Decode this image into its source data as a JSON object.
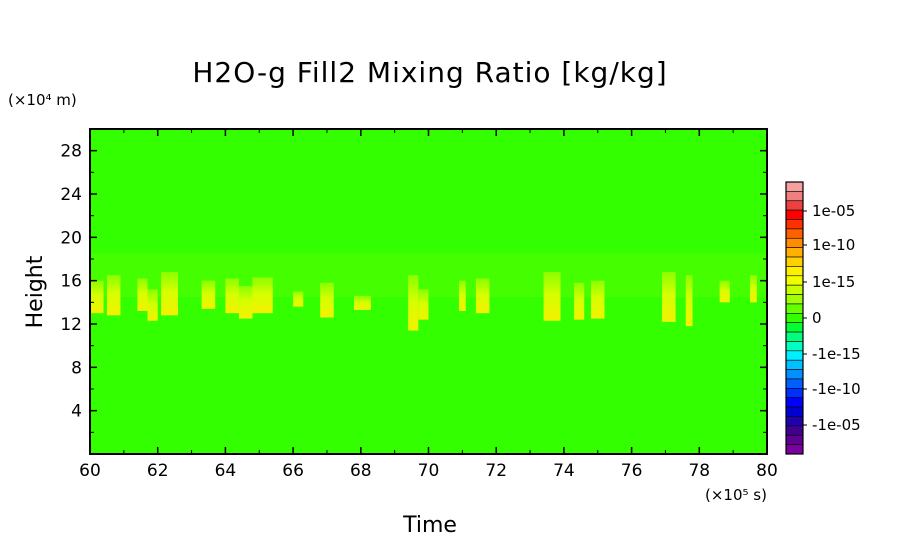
{
  "chart_data": {
    "type": "heatmap",
    "title": "H2O-g Fill2 Mixing Ratio [kg/kg]",
    "xlabel": "Time",
    "ylabel": "Height",
    "x_unit": "(×10⁵ s)",
    "y_unit": "(×10⁴ m)",
    "xlim": [
      60,
      80
    ],
    "ylim": [
      0,
      30
    ],
    "x_ticks": [
      60,
      62,
      64,
      66,
      68,
      70,
      72,
      74,
      76,
      78,
      80
    ],
    "y_ticks": [
      4,
      8,
      12,
      16,
      20,
      24,
      28
    ],
    "x_tick_labels": [
      "60",
      "62",
      "64",
      "66",
      "68",
      "70",
      "72",
      "74",
      "76",
      "78",
      "80"
    ],
    "y_tick_labels": [
      "4",
      "8",
      "12",
      "16",
      "20",
      "24",
      "28"
    ],
    "background_value": "0",
    "background_color": "#33ff00",
    "colorbar": {
      "labels": [
        "1e-05",
        "1e-10",
        "1e-15",
        "0",
        "-1e-15",
        "-1e-10",
        "-1e-05"
      ],
      "colors": [
        "#f4a0a0",
        "#f08080",
        "#ee4040",
        "#ff0000",
        "#ff3000",
        "#ff6000",
        "#ff8c00",
        "#ffb000",
        "#ffd000",
        "#fff000",
        "#f0ff00",
        "#c8ff00",
        "#a0ff00",
        "#66ff00",
        "#33ff00",
        "#00ff33",
        "#00ff80",
        "#00ffc0",
        "#00f0ff",
        "#00c0ff",
        "#0090ff",
        "#0060ff",
        "#0030ff",
        "#0000ff",
        "#0000d0",
        "#2000b0",
        "#400090",
        "#600090",
        "#7a00a0"
      ]
    },
    "features": [
      {
        "x_start": 60.0,
        "x_end": 60.4,
        "y_low": 13.0,
        "y_high": 16.0,
        "value": "1e-15"
      },
      {
        "x_start": 60.5,
        "x_end": 60.9,
        "y_low": 12.8,
        "y_high": 16.5,
        "value": "1e-15"
      },
      {
        "x_start": 61.4,
        "x_end": 61.7,
        "y_low": 13.2,
        "y_high": 16.2,
        "value": "1e-15"
      },
      {
        "x_start": 61.7,
        "x_end": 62.0,
        "y_low": 12.3,
        "y_high": 15.2,
        "value": "1e-15"
      },
      {
        "x_start": 62.1,
        "x_end": 62.6,
        "y_low": 12.8,
        "y_high": 16.8,
        "value": "1e-15"
      },
      {
        "x_start": 63.3,
        "x_end": 63.7,
        "y_low": 13.4,
        "y_high": 16.0,
        "value": "1e-15"
      },
      {
        "x_start": 64.0,
        "x_end": 64.4,
        "y_low": 13.0,
        "y_high": 16.2,
        "value": "1e-15"
      },
      {
        "x_start": 64.4,
        "x_end": 64.8,
        "y_low": 12.5,
        "y_high": 15.5,
        "value": "1e-15"
      },
      {
        "x_start": 64.8,
        "x_end": 65.4,
        "y_low": 13.0,
        "y_high": 16.3,
        "value": "1e-15"
      },
      {
        "x_start": 66.0,
        "x_end": 66.3,
        "y_low": 13.6,
        "y_high": 15.0,
        "value": "1e-15"
      },
      {
        "x_start": 66.8,
        "x_end": 67.2,
        "y_low": 12.6,
        "y_high": 15.8,
        "value": "1e-15"
      },
      {
        "x_start": 67.8,
        "x_end": 68.3,
        "y_low": 13.3,
        "y_high": 14.6,
        "value": "1e-15"
      },
      {
        "x_start": 69.4,
        "x_end": 69.7,
        "y_low": 11.4,
        "y_high": 16.5,
        "value": "1e-15"
      },
      {
        "x_start": 69.7,
        "x_end": 70.0,
        "y_low": 12.4,
        "y_high": 15.2,
        "value": "1e-15"
      },
      {
        "x_start": 70.9,
        "x_end": 71.1,
        "y_low": 13.2,
        "y_high": 16.0,
        "value": "1e-15"
      },
      {
        "x_start": 71.4,
        "x_end": 71.8,
        "y_low": 13.0,
        "y_high": 16.2,
        "value": "1e-15"
      },
      {
        "x_start": 73.4,
        "x_end": 73.9,
        "y_low": 12.3,
        "y_high": 16.8,
        "value": "1e-15"
      },
      {
        "x_start": 74.3,
        "x_end": 74.6,
        "y_low": 12.4,
        "y_high": 15.8,
        "value": "1e-15"
      },
      {
        "x_start": 74.8,
        "x_end": 75.2,
        "y_low": 12.5,
        "y_high": 16.0,
        "value": "1e-15"
      },
      {
        "x_start": 76.9,
        "x_end": 77.3,
        "y_low": 12.2,
        "y_high": 16.8,
        "value": "1e-15"
      },
      {
        "x_start": 77.6,
        "x_end": 77.8,
        "y_low": 11.8,
        "y_high": 16.5,
        "value": "1e-15"
      },
      {
        "x_start": 78.6,
        "x_end": 78.9,
        "y_low": 14.0,
        "y_high": 16.0,
        "value": "1e-15"
      },
      {
        "x_start": 79.5,
        "x_end": 79.7,
        "y_low": 14.0,
        "y_high": 16.5,
        "value": "1e-15"
      }
    ]
  }
}
